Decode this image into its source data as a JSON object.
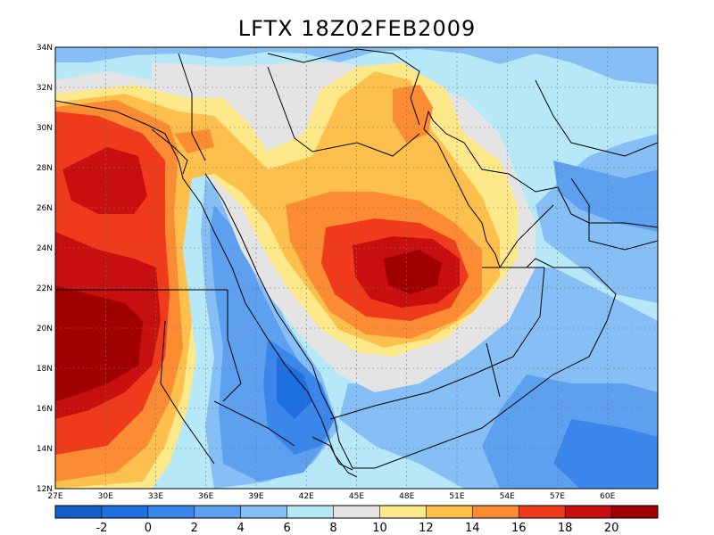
{
  "title": "LFTX 18Z02FEB2009",
  "map": {
    "lat_labels": [
      "34N",
      "32N",
      "30N",
      "28N",
      "26N",
      "24N",
      "22N",
      "20N",
      "18N",
      "16N",
      "14N",
      "12N"
    ],
    "lon_labels": [
      "27E",
      "30E",
      "33E",
      "36E",
      "39E",
      "42E",
      "45E",
      "48E",
      "51E",
      "54E",
      "57E",
      "60E"
    ],
    "lon_range": [
      27,
      63
    ],
    "lat_range": [
      12,
      34
    ],
    "grid": "dotted"
  },
  "colorbar": {
    "labels": [
      "-2",
      "0",
      "2",
      "4",
      "6",
      "8",
      "10",
      "12",
      "14",
      "16",
      "18",
      "20"
    ],
    "colors": [
      "#1560c8",
      "#1e6fe0",
      "#3a86ea",
      "#5da0f0",
      "#86bff5",
      "#b6e8f8",
      "#e4e4e4",
      "#fde88a",
      "#fec04c",
      "#fc8c33",
      "#ef3b1b",
      "#c80f0f",
      "#a00000"
    ]
  },
  "field_colors": {
    "lt_neg2": "#1560c8",
    "0_2": "#3a86ea",
    "2_4": "#5da0f0",
    "4_6": "#86bff5",
    "6_8": "#b6e8f8",
    "8_10": "#e4e4e4",
    "10_12": "#fde88a",
    "12_14": "#fec04c",
    "14_16": "#fc8c33",
    "16_18": "#ef3b1b",
    "18_20": "#c80f0f",
    "gt_20": "#a00000"
  }
}
